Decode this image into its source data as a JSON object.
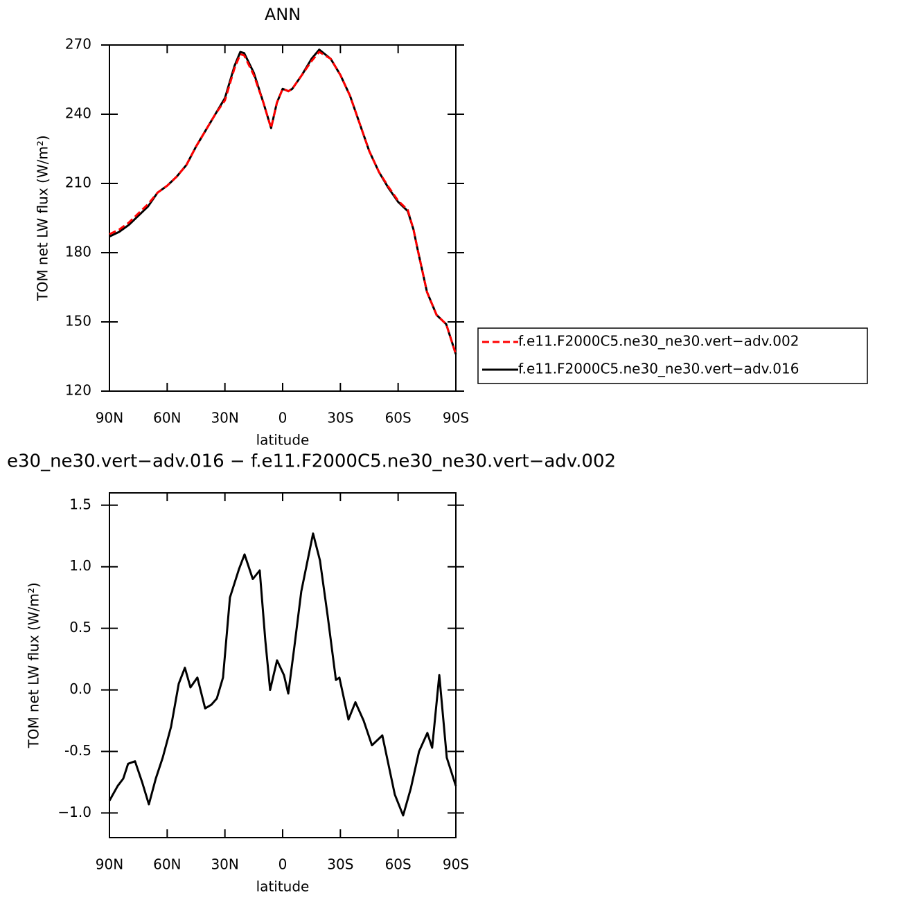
{
  "chart_data": [
    {
      "type": "line",
      "title": "ANN",
      "x_label": "latitude",
      "y_label": "TOM net LW flux (W/m²)",
      "x": [
        90,
        85,
        80,
        75,
        70,
        65,
        60,
        55,
        50,
        45,
        40,
        35,
        30,
        25,
        22,
        20,
        15,
        10,
        6,
        3,
        0,
        -3,
        -5,
        -10,
        -15,
        -19,
        -25,
        -30,
        -35,
        -40,
        -45,
        -50,
        -55,
        -60,
        -65,
        -68,
        -70,
        -75,
        -80,
        -85,
        -90
      ],
      "series": [
        {
          "name": "f.e11.F2000C5.ne30_ne30.vert−adv.002",
          "color": "#ff0000",
          "dash": true,
          "values": [
            188,
            190,
            193,
            197,
            201,
            206,
            209,
            213,
            218,
            226,
            233,
            240,
            246,
            260,
            266,
            265.5,
            257,
            245,
            234,
            245,
            251,
            250,
            251,
            257,
            263,
            267,
            264,
            257,
            248,
            236,
            224,
            215,
            208.5,
            202.5,
            198.5,
            190,
            182,
            163,
            153,
            149,
            136
          ]
        },
        {
          "name": "f.e11.F2000C5.ne30_ne30.vert−adv.016",
          "color": "#000000",
          "dash": false,
          "values": [
            187,
            189,
            192,
            196,
            200,
            206,
            209,
            213,
            218,
            226,
            233,
            240,
            247,
            261,
            267,
            266.5,
            258,
            245,
            234,
            245,
            251,
            250,
            251,
            257,
            264,
            268,
            264,
            257,
            248,
            236,
            224,
            215,
            208,
            202,
            198,
            190,
            182,
            163,
            153,
            149,
            136
          ]
        }
      ],
      "xlim": [
        90,
        -90
      ],
      "xticks": [
        {
          "value": 90,
          "label": "90N"
        },
        {
          "value": 60,
          "label": "60N"
        },
        {
          "value": 30,
          "label": "30N"
        },
        0,
        {
          "value": -30,
          "label": "30S"
        },
        {
          "value": -60,
          "label": "60S"
        },
        {
          "value": -90,
          "label": "90S"
        }
      ],
      "ylim": [
        120,
        270
      ],
      "yticks": [
        120,
        150,
        180,
        210,
        240,
        270
      ],
      "legend": "right"
    },
    {
      "type": "line",
      "title": "e30_ne30.vert−adv.016 − f.e11.F2000C5.ne30_ne30.vert−adv.002",
      "x_label": "latitude",
      "y_label": "TOM net LW flux (W/m²)",
      "x": [
        90,
        85.7,
        82.8,
        80.3,
        76.7,
        73,
        69.5,
        65.9,
        62.3,
        58,
        54,
        50.8,
        47.9,
        44.3,
        40.3,
        37,
        34.2,
        31,
        27.4,
        22.7,
        19.8,
        15.5,
        11.9,
        9,
        6.5,
        2.9,
        -0.7,
        -2.9,
        -6.1,
        -9.7,
        -15.8,
        -19.4,
        -23.4,
        -27.7,
        -29.5,
        -34.2,
        -37.8,
        -42.1,
        -46.4,
        -51.8,
        -58.3,
        -62.6,
        -66.6,
        -70.9,
        -75.2,
        -77.7,
        -81.4,
        -85.3,
        -90
      ],
      "series": [
        {
          "color": "#000000",
          "dash": false,
          "values": [
            -0.9,
            -0.78,
            -0.72,
            -0.6,
            -0.58,
            -0.75,
            -0.93,
            -0.72,
            -0.55,
            -0.3,
            0.05,
            0.18,
            0.02,
            0.1,
            -0.15,
            -0.12,
            -0.07,
            0.1,
            0.75,
            0.98,
            1.1,
            0.9,
            0.97,
            0.4,
            0.0,
            0.24,
            0.12,
            -0.03,
            0.35,
            0.8,
            1.27,
            1.05,
            0.6,
            0.08,
            0.1,
            -0.24,
            -0.1,
            -0.25,
            -0.45,
            -0.37,
            -0.85,
            -1.02,
            -0.8,
            -0.5,
            -0.35,
            -0.47,
            0.12,
            -0.55,
            -0.78
          ]
        }
      ],
      "xlim": [
        90,
        -90
      ],
      "xticks": [
        {
          "value": 90,
          "label": "90N"
        },
        {
          "value": 60,
          "label": "60N"
        },
        {
          "value": 30,
          "label": "30N"
        },
        0,
        {
          "value": -30,
          "label": "30S"
        },
        {
          "value": -60,
          "label": "60S"
        },
        {
          "value": -90,
          "label": "90S"
        }
      ],
      "ylim": [
        -1.2,
        1.6
      ],
      "yticks": [
        {
          "value": -1,
          "label": "−1.0"
        },
        -0.5,
        {
          "value": 0,
          "label": "0.0"
        },
        0.5,
        {
          "value": 1,
          "label": "1.0"
        },
        1.5
      ]
    }
  ]
}
